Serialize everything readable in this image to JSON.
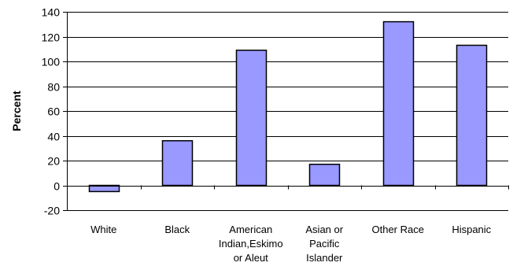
{
  "chart_data": {
    "type": "bar",
    "title": "",
    "xlabel": "",
    "ylabel": "Percent",
    "ylim": [
      -20,
      140
    ],
    "yticks": [
      -20,
      0,
      20,
      40,
      60,
      80,
      100,
      120,
      140
    ],
    "grid": true,
    "categories": [
      "White",
      "Black",
      "American Indian,Eskimo or Aleut",
      "Asian or Pacific Islander",
      "Other Race",
      "Hispanic"
    ],
    "category_label_lines": [
      [
        "White"
      ],
      [
        "Black"
      ],
      [
        "American",
        "Indian,Eskimo",
        "or Aleut"
      ],
      [
        "Asian or",
        "Pacific",
        "Islander"
      ],
      [
        "Other Race"
      ],
      [
        "Hispanic"
      ]
    ],
    "values": [
      -5,
      36,
      109,
      17,
      132,
      113
    ],
    "bar_color": "#9999ff",
    "bar_stroke": "#000000"
  }
}
